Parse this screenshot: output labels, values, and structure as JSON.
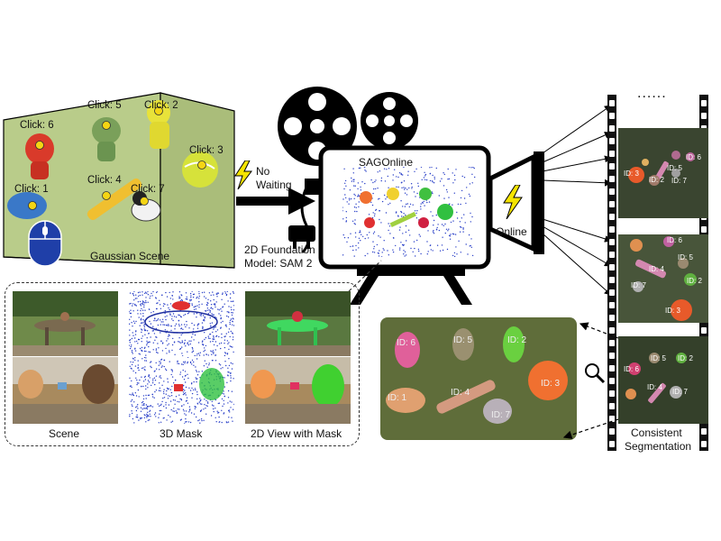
{
  "gaussian_scene": {
    "title": "Gaussian Scene",
    "clicks": [
      "Click: 6",
      "Click: 5",
      "Click: 2",
      "Click: 3",
      "Click: 4",
      "Click: 1",
      "Click: 7"
    ]
  },
  "no_waiting": {
    "line1": "No",
    "line2": "Waiting"
  },
  "foundation_model": {
    "line1": "2D Foundation",
    "line2": "Model: SAM 2"
  },
  "projector": {
    "title": "SAGOnline",
    "online": "Online"
  },
  "film_strip": {
    "dots": "......",
    "caption_line1": "Consistent",
    "caption_line2": "Segmentation",
    "frame1_ids": [
      "ID: 6",
      "ID: 5",
      "ID: 3",
      "ID: 2",
      "ID: 7"
    ],
    "frame2_ids": [
      "ID: 6",
      "ID: 5",
      "ID: 4",
      "ID: 2",
      "ID: 3",
      "ID: 7"
    ],
    "frame3_ids": [
      "ID: 5",
      "ID: 2",
      "ID: 6",
      "ID: 4",
      "ID: 7"
    ]
  },
  "zoom_view": {
    "ids": [
      "ID: 6",
      "ID: 5",
      "ID: 2",
      "ID: 4",
      "ID: 1",
      "ID: 3",
      "ID: 7"
    ]
  },
  "bottom_panel": {
    "captions": [
      "Scene",
      "3D Mask",
      "2D View with Mask"
    ]
  },
  "colors": {
    "scene_green": "#b7cc8c",
    "projector_outline": "#000000",
    "lightning": "#f5e400",
    "mouse_blue": "#1f3fa8",
    "frame_dark": "#34402a"
  }
}
